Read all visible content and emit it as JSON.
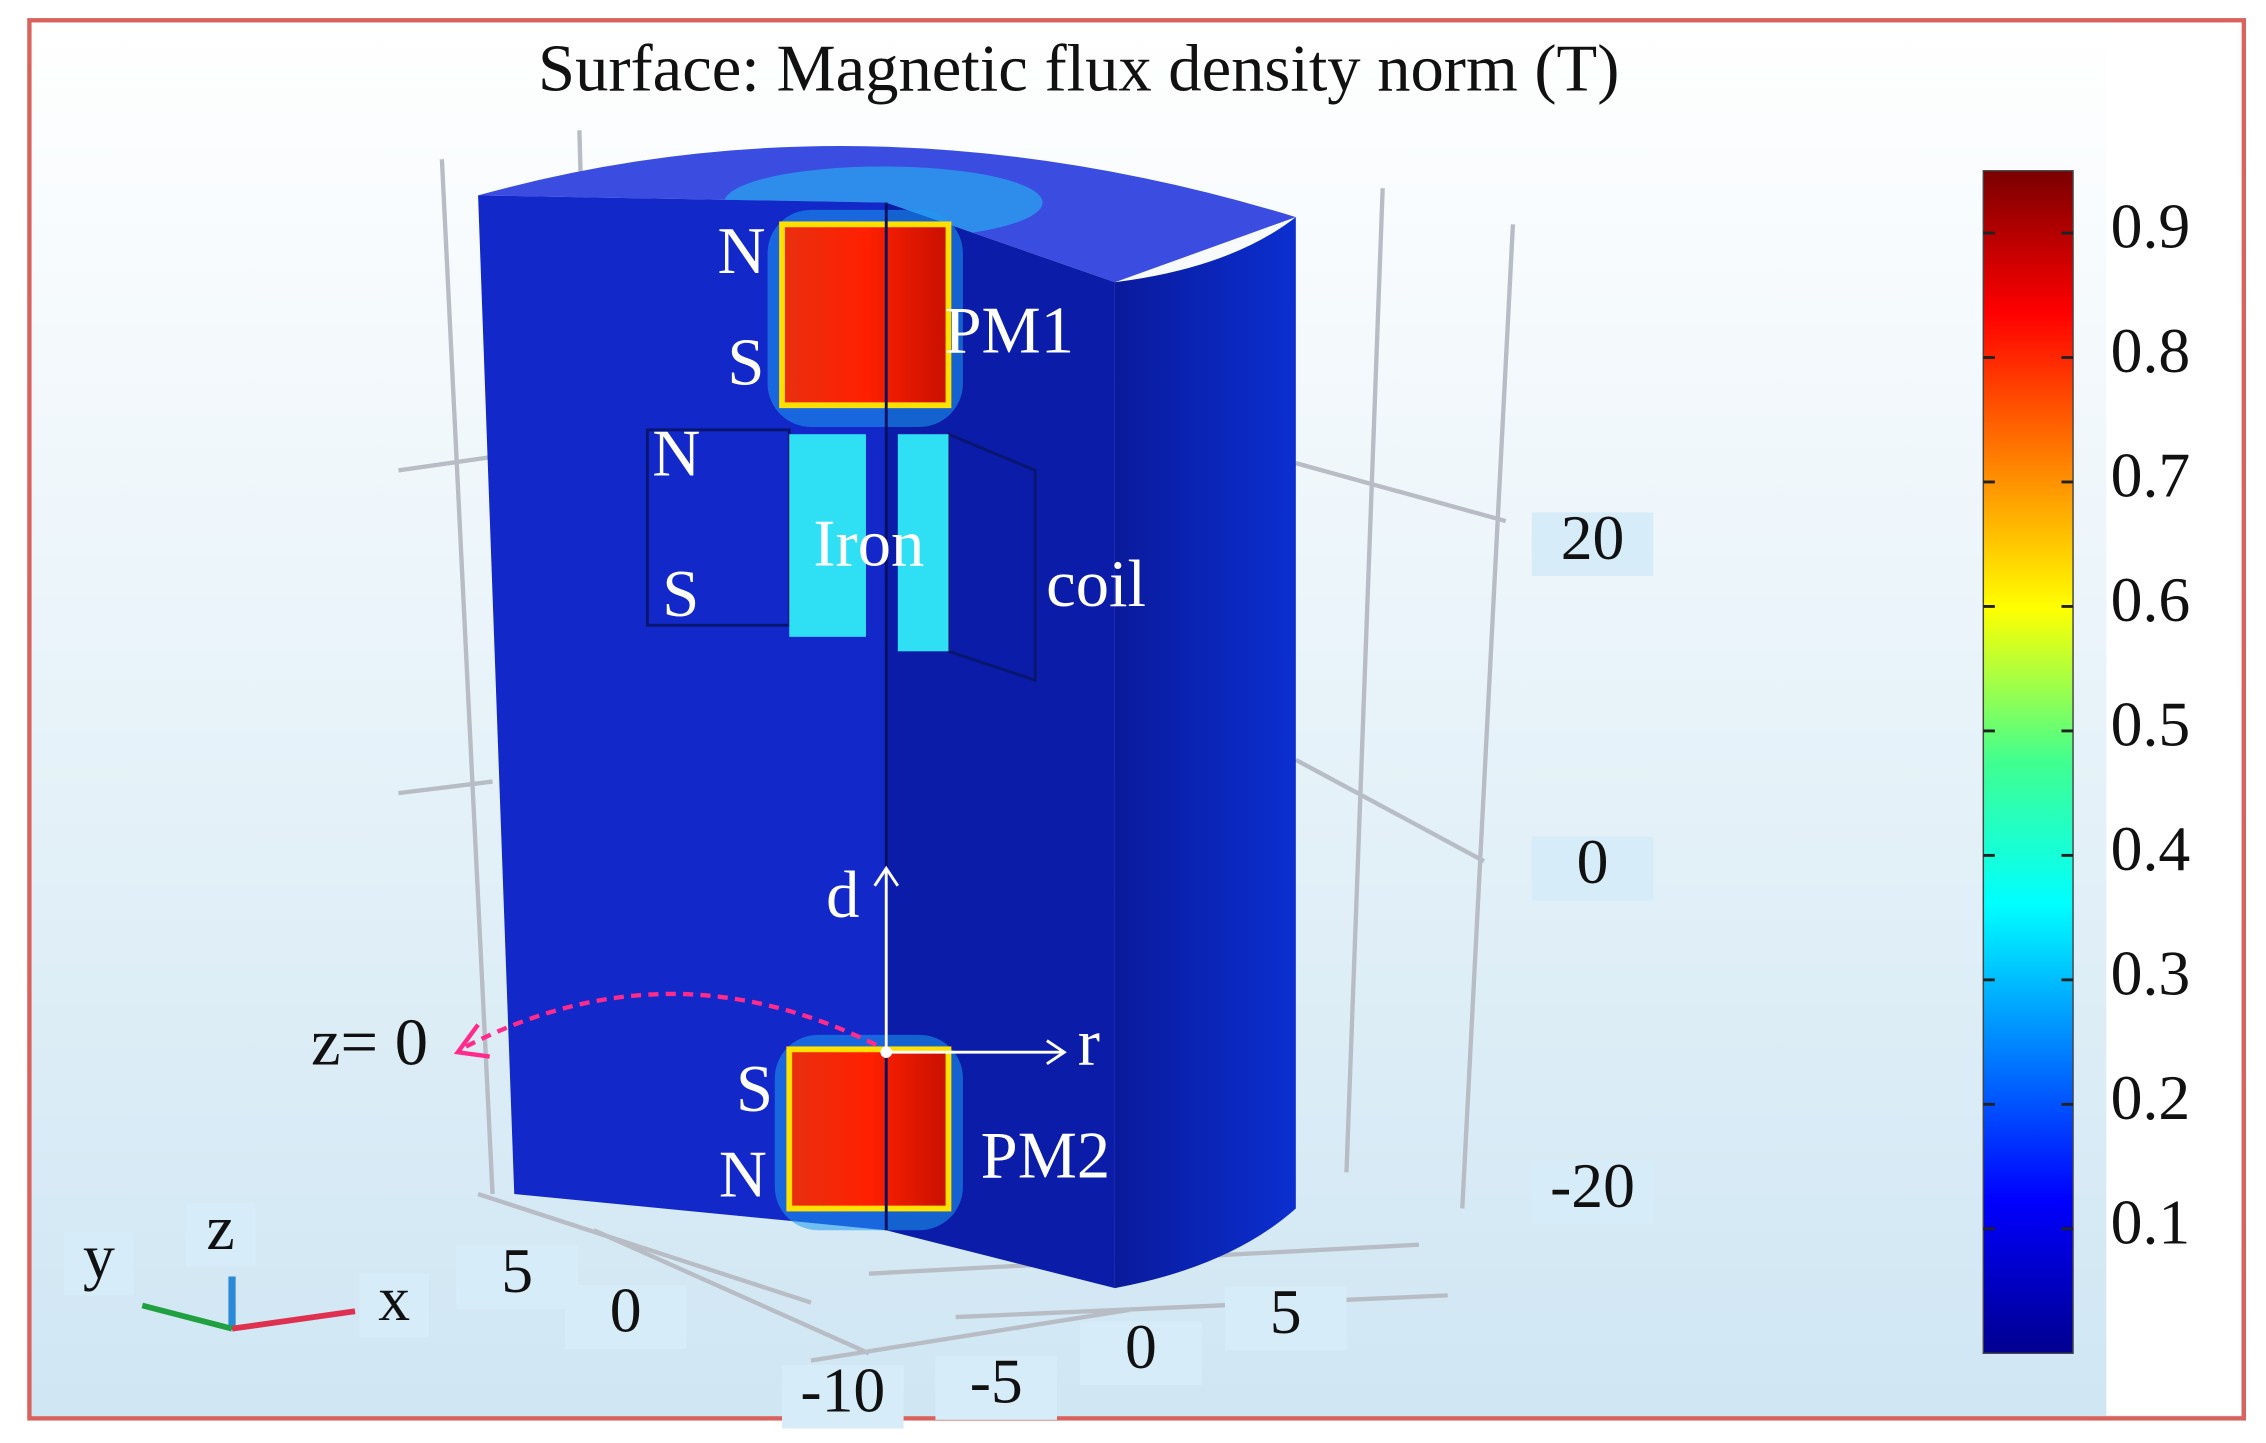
{
  "title": "Surface: Magnetic flux density norm (T)",
  "annotations": [
    "N",
    "S",
    "PM1",
    "N",
    "S",
    "Iron",
    "coil",
    "d",
    "r",
    "z= 0",
    "S",
    "N",
    "PM2"
  ],
  "triad": {
    "y": "y",
    "z": "z",
    "x": "x"
  },
  "axes": {
    "z": {
      "ticks": [
        20,
        0,
        -20
      ]
    },
    "x": {
      "ticks": [
        5,
        0,
        -5
      ]
    },
    "y": {
      "ticks": [
        5,
        0,
        -10
      ]
    }
  },
  "colorbar": {
    "lim": [
      0,
      0.95
    ],
    "ticks": [
      0.1,
      0.2,
      0.3,
      0.4,
      0.5,
      0.6,
      0.7,
      0.8,
      0.9
    ]
  }
}
